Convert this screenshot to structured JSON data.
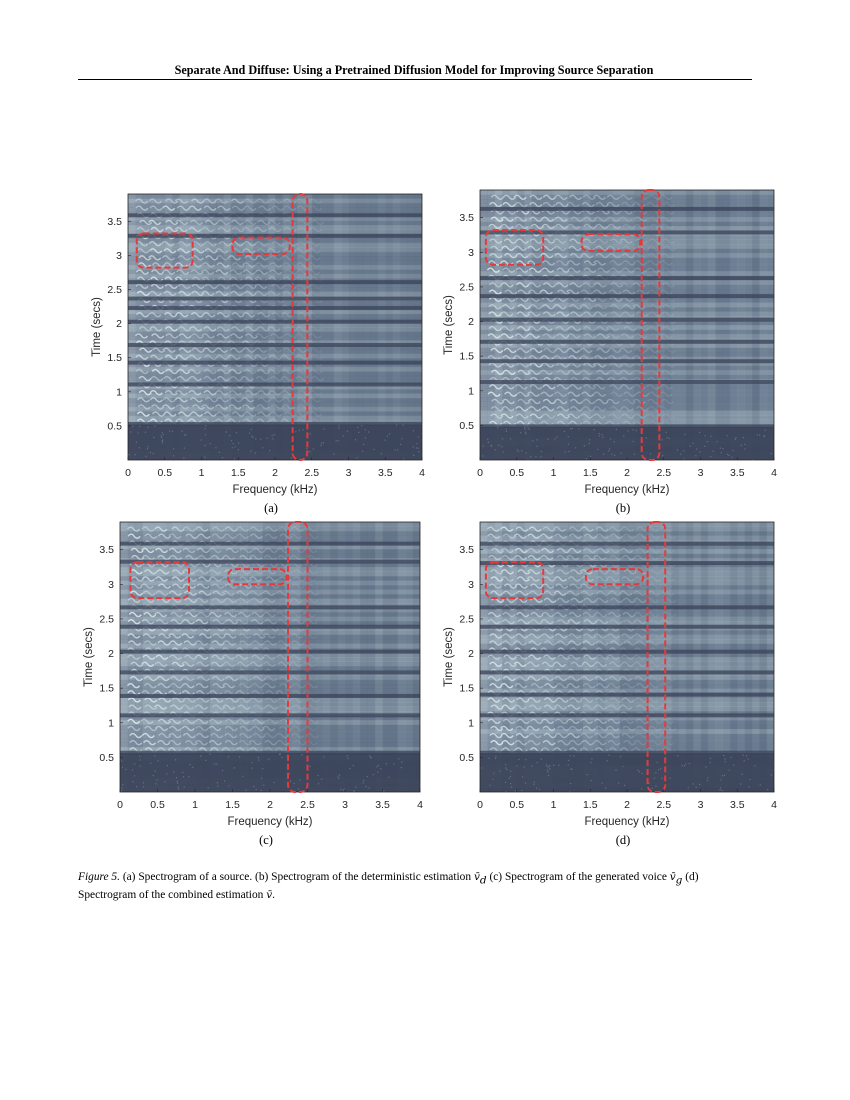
{
  "header": {
    "running_title": "Separate And Diffuse: Using a Pretrained Diffusion Model for Improving Source Separation"
  },
  "figure": {
    "panels": [
      {
        "id": "a",
        "sublabel": "(a)",
        "xlabel": "Frequency (kHz)",
        "ylabel": "Time (secs)",
        "xticks": [
          "0",
          "0.5",
          "1",
          "1.5",
          "2",
          "2.5",
          "3",
          "3.5",
          "4"
        ],
        "yticks": [
          "0.5",
          "1",
          "1.5",
          "2",
          "2.5",
          "3",
          "3.5"
        ],
        "dark_bands_y": [
          0.52,
          1.1,
          1.42,
          1.68,
          2.02,
          2.22,
          2.36,
          2.6,
          3.28,
          3.58
        ],
        "silent_below_y": 0.52,
        "highlight_boxes": [
          {
            "x": [
              0.12,
              0.88
            ],
            "y": [
              2.82,
              3.32
            ]
          },
          {
            "x": [
              1.42,
              2.2
            ],
            "y": [
              3.02,
              3.26
            ]
          },
          {
            "x": [
              2.24,
              2.44
            ],
            "y": [
              0.0,
              3.9
            ]
          }
        ]
      },
      {
        "id": "b",
        "sublabel": "(b)",
        "xlabel": "Frequency (kHz)",
        "ylabel": "Time (secs)",
        "xticks": [
          "0",
          "0.5",
          "1",
          "1.5",
          "2",
          "2.5",
          "3",
          "3.5",
          "4"
        ],
        "yticks": [
          "0.5",
          "1",
          "1.5",
          "2",
          "2.5",
          "3",
          "3.5"
        ],
        "dark_bands_y": [
          0.48,
          1.12,
          1.42,
          1.7,
          2.02,
          2.36,
          2.62,
          3.28,
          3.62
        ],
        "silent_below_y": 0.48,
        "highlight_boxes": [
          {
            "x": [
              0.08,
              0.86
            ],
            "y": [
              2.82,
              3.32
            ]
          },
          {
            "x": [
              1.38,
              2.18
            ],
            "y": [
              3.02,
              3.26
            ]
          },
          {
            "x": [
              2.2,
              2.44
            ],
            "y": [
              0.0,
              3.9
            ]
          }
        ]
      },
      {
        "id": "c",
        "sublabel": "(c)",
        "xlabel": "Frequency (kHz)",
        "ylabel": "Time (secs)",
        "xticks": [
          "0",
          "0.5",
          "1",
          "1.5",
          "2",
          "2.5",
          "3",
          "3.5",
          "4"
        ],
        "yticks": [
          "0.5",
          "1",
          "1.5",
          "2",
          "2.5",
          "3",
          "3.5"
        ],
        "dark_bands_y": [
          0.56,
          1.1,
          1.38,
          1.72,
          2.02,
          2.38,
          2.66,
          3.32,
          3.58
        ],
        "silent_below_y": 0.56,
        "highlight_boxes": [
          {
            "x": [
              0.14,
              0.92
            ],
            "y": [
              2.8,
              3.32
            ]
          },
          {
            "x": [
              1.44,
              2.22
            ],
            "y": [
              3.0,
              3.22
            ]
          },
          {
            "x": [
              2.24,
              2.5
            ],
            "y": [
              0.0,
              3.9
            ]
          }
        ]
      },
      {
        "id": "d",
        "sublabel": "(d)",
        "xlabel": "Frequency (kHz)",
        "ylabel": "Time (secs)",
        "xticks": [
          "0",
          "0.5",
          "1",
          "1.5",
          "2",
          "2.5",
          "3",
          "3.5",
          "4"
        ],
        "yticks": [
          "0.5",
          "1",
          "1.5",
          "2",
          "2.5",
          "3",
          "3.5"
        ],
        "dark_bands_y": [
          0.56,
          1.1,
          1.4,
          1.72,
          2.02,
          2.38,
          2.66,
          3.3,
          3.58
        ],
        "silent_below_y": 0.56,
        "highlight_boxes": [
          {
            "x": [
              0.08,
              0.86
            ],
            "y": [
              2.8,
              3.32
            ]
          },
          {
            "x": [
              1.44,
              2.22
            ],
            "y": [
              3.0,
              3.22
            ]
          },
          {
            "x": [
              2.28,
              2.52
            ],
            "y": [
              0.0,
              3.9
            ]
          }
        ]
      }
    ],
    "axis_ranges": {
      "x": [
        0,
        4
      ],
      "y": [
        0,
        3.9
      ]
    },
    "colormap": {
      "dark": "#3a4258",
      "mid": "#6f8296",
      "bright": "#dff0f0"
    },
    "highlight_color": "#e8393a"
  },
  "caption": {
    "figure_label": "Figure 5.",
    "part_a": " (a) Spectrogram of a source. (b) Spectrogram of the deterministic estimation ",
    "sym_d": "v̄",
    "sub_d": "d",
    "part_b": " (c) Spectrogram of the generated voice ",
    "sym_g": "v̄",
    "sub_g": "g",
    "part_c": " (d) Spectrogram of the combined estimation ",
    "sym_v": "v̄",
    "part_d": "."
  }
}
